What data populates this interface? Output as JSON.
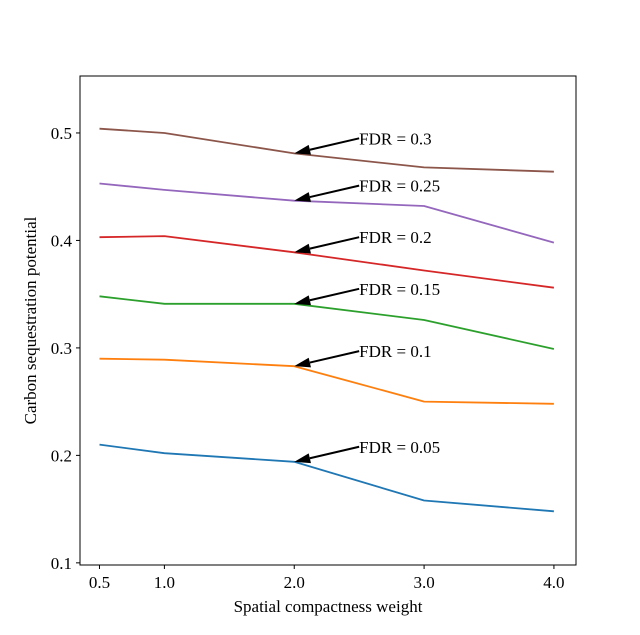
{
  "chart_data": {
    "type": "line",
    "title": "",
    "xlabel": "Spatial compactness weight",
    "ylabel": "Carbon sequestration potential",
    "x": [
      0.5,
      1.0,
      2.0,
      3.0,
      4.0
    ],
    "x_tick_labels": [
      "0.5",
      "1.0",
      "2.0",
      "3.0",
      "4.0"
    ],
    "xlim": [
      0.35,
      4.17
    ],
    "y_ticks": [
      0.1,
      0.2,
      0.3,
      0.4,
      0.5
    ],
    "y_tick_labels": [
      "0.1",
      "0.2",
      "0.3",
      "0.4",
      "0.5"
    ],
    "ylim": [
      0.098,
      0.553
    ],
    "grid": false,
    "series": [
      {
        "name": "FDR = 0.05",
        "color": "#1f77b4",
        "values": [
          0.21,
          0.202,
          0.194,
          0.158,
          0.148
        ]
      },
      {
        "name": "FDR = 0.1",
        "color": "#ff7f0e",
        "values": [
          0.29,
          0.289,
          0.283,
          0.25,
          0.248
        ]
      },
      {
        "name": "FDR = 0.15",
        "color": "#2ca02c",
        "values": [
          0.348,
          0.341,
          0.341,
          0.326,
          0.299
        ]
      },
      {
        "name": "FDR = 0.2",
        "color": "#d62728",
        "values": [
          0.403,
          0.404,
          0.389,
          0.372,
          0.356
        ]
      },
      {
        "name": "FDR = 0.25",
        "color": "#9467bd",
        "values": [
          0.453,
          0.447,
          0.437,
          0.432,
          0.398
        ]
      },
      {
        "name": "FDR = 0.3",
        "color": "#8c564b",
        "values": [
          0.504,
          0.5,
          0.481,
          0.468,
          0.464
        ]
      }
    ],
    "annotations": [
      {
        "text": "FDR = 0.05",
        "series": "FDR = 0.05",
        "point_x": 2.0,
        "point_y": 0.194,
        "text_x": 2.5,
        "text_y": 0.208
      },
      {
        "text": "FDR = 0.1",
        "series": "FDR = 0.1",
        "point_x": 2.0,
        "point_y": 0.283,
        "text_x": 2.5,
        "text_y": 0.297
      },
      {
        "text": "FDR = 0.15",
        "series": "FDR = 0.15",
        "point_x": 2.0,
        "point_y": 0.341,
        "text_x": 2.5,
        "text_y": 0.355
      },
      {
        "text": "FDR = 0.2",
        "series": "FDR = 0.2",
        "point_x": 2.0,
        "point_y": 0.389,
        "text_x": 2.5,
        "text_y": 0.403
      },
      {
        "text": "FDR = 0.25",
        "series": "FDR = 0.25",
        "point_x": 2.0,
        "point_y": 0.437,
        "text_x": 2.5,
        "text_y": 0.451
      },
      {
        "text": "FDR = 0.3",
        "series": "FDR = 0.3",
        "point_x": 2.0,
        "point_y": 0.481,
        "text_x": 2.5,
        "text_y": 0.495
      }
    ]
  }
}
